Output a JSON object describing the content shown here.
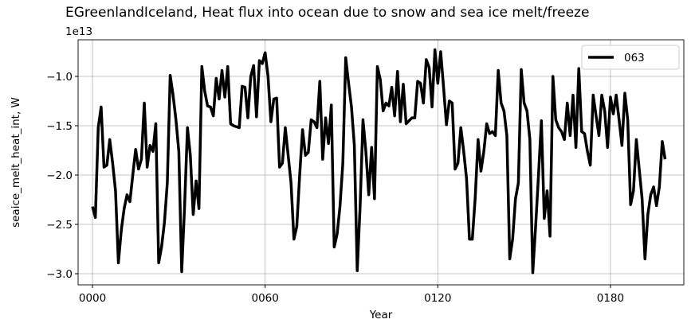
{
  "chart_data": {
    "type": "line",
    "title": "EGreenlandIceland, Heat flux into ocean due to snow and sea ice melt/freeze",
    "x_label": "Year",
    "y_label": "seaice_melt_heat_int, W",
    "y_offset_text": "1e13",
    "x": [
      0,
      1,
      2,
      3,
      4,
      5,
      6,
      7,
      8,
      9,
      10,
      11,
      12,
      13,
      14,
      15,
      16,
      17,
      18,
      19,
      20,
      21,
      22,
      23,
      24,
      25,
      26,
      27,
      28,
      29,
      30,
      31,
      32,
      33,
      34,
      35,
      36,
      37,
      38,
      39,
      40,
      41,
      42,
      43,
      44,
      45,
      46,
      47,
      48,
      49,
      50,
      51,
      52,
      53,
      54,
      55,
      56,
      57,
      58,
      59,
      60,
      61,
      62,
      63,
      64,
      65,
      66,
      67,
      68,
      69,
      70,
      71,
      72,
      73,
      74,
      75,
      76,
      77,
      78,
      79,
      80,
      81,
      82,
      83,
      84,
      85,
      86,
      87,
      88,
      89,
      90,
      91,
      92,
      93,
      94,
      95,
      96,
      97,
      98,
      99,
      100,
      101,
      102,
      103,
      104,
      105,
      106,
      107,
      108,
      109,
      110,
      111,
      112,
      113,
      114,
      115,
      116,
      117,
      118,
      119,
      120,
      121,
      122,
      123,
      124,
      125,
      126,
      127,
      128,
      129,
      130,
      131,
      132,
      133,
      134,
      135,
      136,
      137,
      138,
      139,
      140,
      141,
      142,
      143,
      144,
      145,
      146,
      147,
      148,
      149,
      150,
      151,
      152,
      153,
      154,
      155,
      156,
      157,
      158,
      159,
      160,
      161,
      162,
      163,
      164,
      165,
      166,
      167,
      168,
      169,
      170,
      171,
      172,
      173,
      174,
      175,
      176,
      177,
      178,
      179,
      180,
      181,
      182,
      183,
      184,
      185,
      186,
      187,
      188,
      189,
      190,
      191,
      192,
      193,
      194,
      195,
      196,
      197,
      198,
      199
    ],
    "series": [
      {
        "name": "063",
        "color": "#000000",
        "values": [
          -2.32,
          -2.43,
          -1.52,
          -1.31,
          -1.92,
          -1.9,
          -1.64,
          -1.88,
          -2.16,
          -2.89,
          -2.56,
          -2.34,
          -2.2,
          -2.27,
          -2.0,
          -1.74,
          -1.94,
          -1.84,
          -1.27,
          -1.92,
          -1.7,
          -1.76,
          -1.48,
          -2.89,
          -2.73,
          -2.48,
          -2.08,
          -0.99,
          -1.19,
          -1.44,
          -1.76,
          -2.98,
          -2.32,
          -1.52,
          -1.8,
          -2.4,
          -2.06,
          -2.34,
          -0.9,
          -1.15,
          -1.3,
          -1.31,
          -1.4,
          -1.02,
          -1.23,
          -0.94,
          -1.21,
          -0.9,
          -1.48,
          -1.5,
          -1.51,
          -1.52,
          -1.1,
          -1.11,
          -1.42,
          -1.0,
          -0.89,
          -1.41,
          -0.84,
          -0.87,
          -0.76,
          -1.0,
          -1.46,
          -1.23,
          -1.22,
          -1.92,
          -1.88,
          -1.52,
          -1.8,
          -2.08,
          -2.65,
          -2.52,
          -2.0,
          -1.54,
          -1.8,
          -1.77,
          -1.44,
          -1.46,
          -1.52,
          -1.05,
          -1.84,
          -1.42,
          -1.68,
          -1.29,
          -2.73,
          -2.6,
          -2.32,
          -1.88,
          -0.81,
          -1.07,
          -1.31,
          -1.7,
          -2.97,
          -2.32,
          -1.44,
          -1.76,
          -2.2,
          -1.72,
          -2.24,
          -0.9,
          -1.03,
          -1.35,
          -1.27,
          -1.3,
          -1.11,
          -1.4,
          -0.95,
          -1.46,
          -1.08,
          -1.48,
          -1.45,
          -1.42,
          -1.42,
          -1.05,
          -1.07,
          -1.27,
          -0.83,
          -0.91,
          -1.31,
          -0.73,
          -1.07,
          -0.75,
          -1.11,
          -1.49,
          -1.25,
          -1.27,
          -1.94,
          -1.88,
          -1.52,
          -1.76,
          -2.04,
          -2.65,
          -2.65,
          -2.23,
          -1.64,
          -1.96,
          -1.76,
          -1.48,
          -1.58,
          -1.56,
          -1.6,
          -0.94,
          -1.27,
          -1.35,
          -1.6,
          -2.85,
          -2.65,
          -2.24,
          -2.08,
          -0.93,
          -1.27,
          -1.35,
          -1.64,
          -2.99,
          -2.52,
          -2.0,
          -1.45,
          -2.44,
          -2.16,
          -2.62,
          -1.0,
          -1.44,
          -1.52,
          -1.56,
          -1.64,
          -1.27,
          -1.6,
          -1.19,
          -1.72,
          -0.92,
          -1.56,
          -1.58,
          -1.76,
          -1.9,
          -1.19,
          -1.4,
          -1.6,
          -1.19,
          -1.35,
          -1.72,
          -1.21,
          -1.38,
          -1.19,
          -1.44,
          -1.7,
          -1.17,
          -1.44,
          -2.3,
          -2.16,
          -1.64,
          -1.94,
          -2.24,
          -2.85,
          -2.4,
          -2.2,
          -2.12,
          -2.31,
          -2.12,
          -1.66,
          -1.84
        ]
      }
    ],
    "xlim": [
      -5,
      205.5
    ],
    "xticks": [
      {
        "value": 0,
        "label": "0000"
      },
      {
        "value": 60,
        "label": "0060"
      },
      {
        "value": 120,
        "label": "0120"
      },
      {
        "value": 180,
        "label": "0180"
      }
    ],
    "ylim": [
      -3.113,
      -0.629
    ],
    "yticks": [
      {
        "value": -3.0,
        "label": "−3.0"
      },
      {
        "value": -2.5,
        "label": "−2.5"
      },
      {
        "value": -2.0,
        "label": "−2.0"
      },
      {
        "value": -1.5,
        "label": "−1.5"
      },
      {
        "value": -1.0,
        "label": "−1.0"
      }
    ],
    "grid": true,
    "legend": "upper right"
  }
}
